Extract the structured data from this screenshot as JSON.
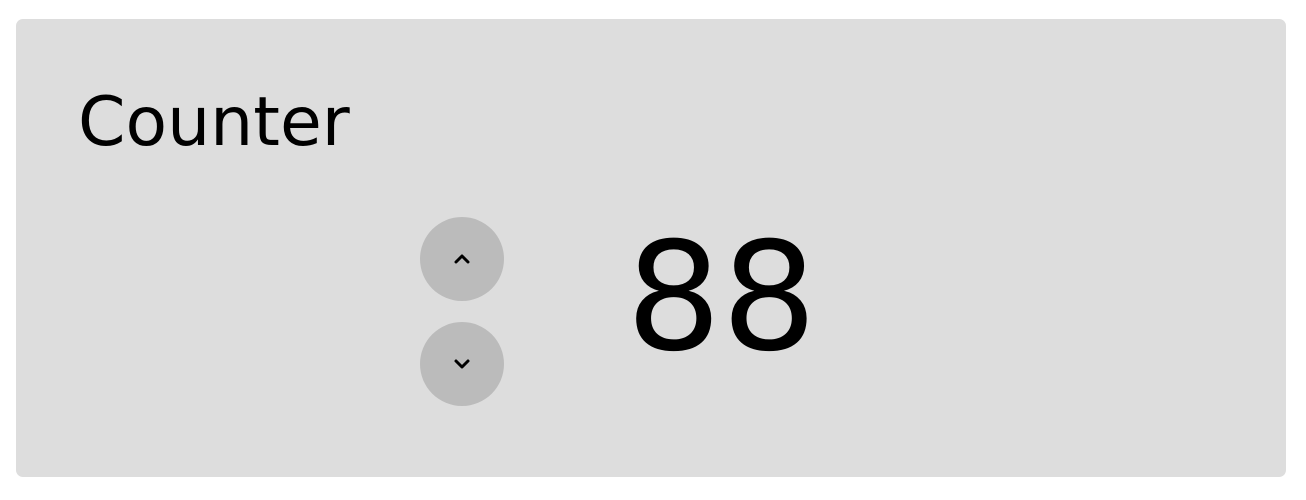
{
  "counter": {
    "title": "Counter",
    "value": "88",
    "increment_icon": "chevron-up-icon",
    "decrement_icon": "chevron-down-icon"
  },
  "colors": {
    "card_background": "#dddddd",
    "button_background": "#bbbbbb",
    "text": "#000000"
  }
}
